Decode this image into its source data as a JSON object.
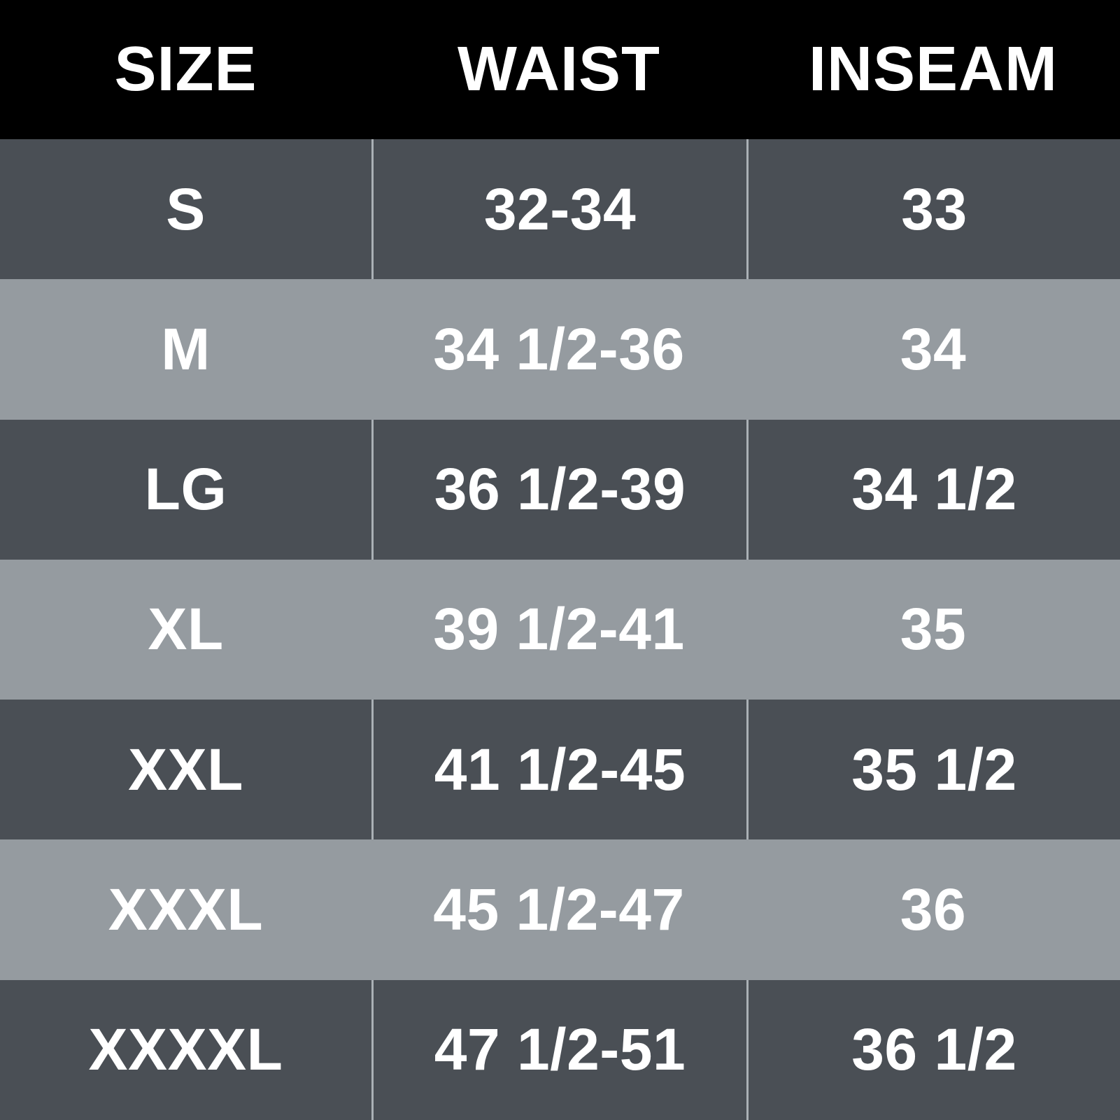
{
  "colors": {
    "header_bg": "#000000",
    "row_dark": "#4a4f55",
    "row_light": "#959ba0",
    "divider": "#aab0b5",
    "text": "#ffffff"
  },
  "table": {
    "headers": {
      "size": "SIZE",
      "waist": "WAIST",
      "inseam": "INSEAM"
    },
    "rows": [
      {
        "size": "S",
        "waist": "32-34",
        "inseam": "33"
      },
      {
        "size": "M",
        "waist": "34 1/2-36",
        "inseam": "34"
      },
      {
        "size": "LG",
        "waist": "36 1/2-39",
        "inseam": "34 1/2"
      },
      {
        "size": "XL",
        "waist": "39 1/2-41",
        "inseam": "35"
      },
      {
        "size": "XXL",
        "waist": "41 1/2-45",
        "inseam": "35 1/2"
      },
      {
        "size": "XXXL",
        "waist": "45 1/2-47",
        "inseam": "36"
      },
      {
        "size": "XXXXL",
        "waist": "47 1/2-51",
        "inseam": "36 1/2"
      }
    ]
  },
  "chart_data": {
    "type": "table",
    "columns": [
      "SIZE",
      "WAIST",
      "INSEAM"
    ],
    "rows": [
      [
        "S",
        "32-34",
        "33"
      ],
      [
        "M",
        "34 1/2-36",
        "34"
      ],
      [
        "LG",
        "36 1/2-39",
        "34 1/2"
      ],
      [
        "XL",
        "39 1/2-41",
        "35"
      ],
      [
        "XXL",
        "41 1/2-45",
        "35 1/2"
      ],
      [
        "XXXL",
        "45 1/2-47",
        "36"
      ],
      [
        "XXXXL",
        "47 1/2-51",
        "36 1/2"
      ]
    ],
    "layout": {
      "header_background": "#000000",
      "striped_rows": true,
      "first_row_shade": "dark",
      "column_dividers_on_dark_rows_only": true
    }
  }
}
